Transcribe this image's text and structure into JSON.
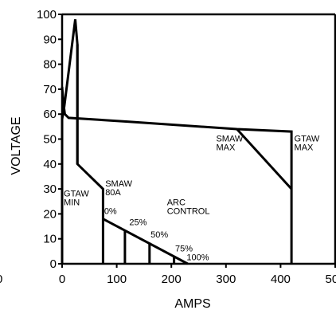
{
  "chart_data": {
    "type": "line",
    "title": "",
    "xlabel": "AMPS",
    "ylabel": "VOLTAGE",
    "xlim": [
      0,
      500
    ],
    "ylim": [
      0,
      100
    ],
    "grid": false,
    "x_ticks": [
      0,
      100,
      200,
      300,
      400,
      500
    ],
    "y_ticks": [
      0,
      10,
      20,
      30,
      40,
      50,
      60,
      70,
      80,
      90,
      100
    ],
    "stray_tick_label": "0",
    "series": [
      {
        "name": "",
        "points": [
          [
            28,
            40
          ],
          [
            28,
            88
          ],
          [
            24,
            98
          ],
          [
            4,
            63
          ],
          [
            0,
            58
          ]
        ]
      },
      {
        "name": "",
        "points": [
          [
            0,
            71
          ],
          [
            2,
            65
          ],
          [
            5,
            60
          ],
          [
            12,
            58.5
          ],
          [
            120,
            57
          ],
          [
            320,
            54
          ],
          [
            420,
            53
          ],
          [
            420,
            0
          ]
        ]
      },
      {
        "name": "",
        "points": [
          [
            0,
            60
          ],
          [
            0,
            0
          ]
        ]
      },
      {
        "name": "",
        "points": [
          [
            28,
            88
          ],
          [
            28,
            40
          ],
          [
            75,
            30
          ],
          [
            75,
            0
          ]
        ]
      },
      {
        "name": "",
        "points": [
          [
            75,
            18
          ],
          [
            230,
            0
          ]
        ]
      },
      {
        "name": "",
        "points": [
          [
            115,
            13.5
          ],
          [
            115,
            0
          ]
        ]
      },
      {
        "name": "",
        "points": [
          [
            160,
            8.5
          ],
          [
            160,
            0
          ]
        ]
      },
      {
        "name": "",
        "points": [
          [
            205,
            3
          ],
          [
            205,
            0
          ]
        ]
      },
      {
        "name": "",
        "points": [
          [
            320,
            54
          ],
          [
            420,
            30
          ]
        ]
      }
    ],
    "annotations": [
      {
        "lines": [
          "GTAW",
          "MIN"
        ],
        "x": 3,
        "y": 27
      },
      {
        "lines": [
          "SMAW",
          "80A"
        ],
        "x": 79,
        "y": 31
      },
      {
        "lines": [
          "0%"
        ],
        "x": 77,
        "y": 20
      },
      {
        "lines": [
          "ARC",
          "CONTROL"
        ],
        "x": 192,
        "y": 23.5
      },
      {
        "lines": [
          "25%"
        ],
        "x": 123,
        "y": 15.5
      },
      {
        "lines": [
          "50%"
        ],
        "x": 162,
        "y": 10.5
      },
      {
        "lines": [
          "75%"
        ],
        "x": 207,
        "y": 5
      },
      {
        "lines": [
          "100%"
        ],
        "x": 228,
        "y": 1.5
      },
      {
        "lines": [
          "SMAW",
          "MAX"
        ],
        "x": 282,
        "y": 49
      },
      {
        "lines": [
          "GTAW",
          "MAX"
        ],
        "x": 425,
        "y": 49
      }
    ]
  }
}
